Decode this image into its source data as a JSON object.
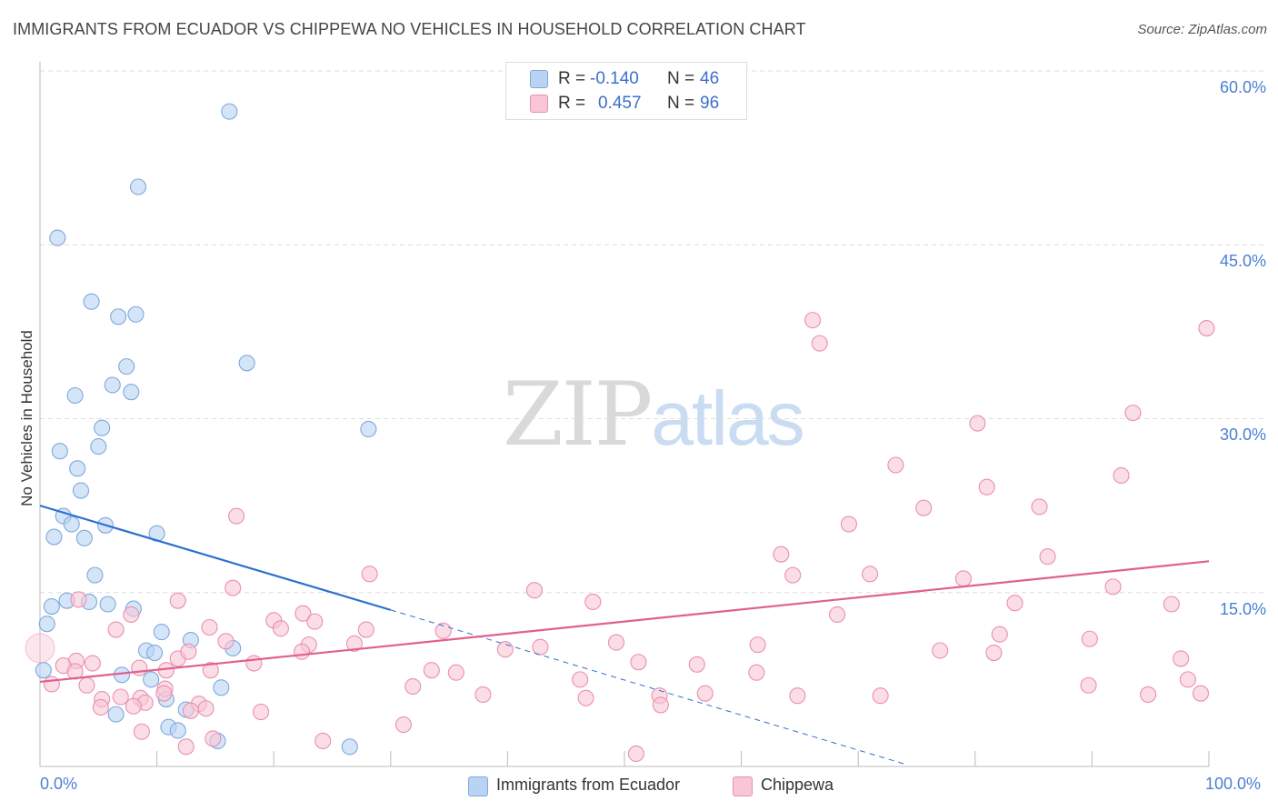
{
  "title": "IMMIGRANTS FROM ECUADOR VS CHIPPEWA NO VEHICLES IN HOUSEHOLD CORRELATION CHART",
  "source": "Source: ZipAtlas.com",
  "watermark": {
    "zip": "ZIP",
    "atlas": "atlas"
  },
  "legend_stats": [
    {
      "r_label": "R =",
      "r_value": "-0.140",
      "n_label": "N =",
      "n_value": "46",
      "color": "#a9c8ef"
    },
    {
      "r_label": "R =",
      "r_value": "0.457",
      "n_label": "N =",
      "n_value": "96",
      "color": "#f7b6cb"
    }
  ],
  "colors": {
    "ecuador_fill": "#b9d3f3",
    "ecuador_stroke": "#7fa8dc",
    "ecuador_line": "#2d6fd0",
    "chippewa_fill": "#f8c6d6",
    "chippewa_stroke": "#ea8fb0",
    "chippewa_line": "#e0608d",
    "axis_text": "#4a7fd4",
    "grid": "#dddddd"
  },
  "chart_data": {
    "type": "scatter",
    "title": "IMMIGRANTS FROM ECUADOR VS CHIPPEWA NO VEHICLES IN HOUSEHOLD CORRELATION CHART",
    "xlabel": "",
    "ylabel": "No Vehicles in Household",
    "xlim": [
      0,
      100
    ],
    "ylim": [
      0,
      60
    ],
    "x_tick_labels": [
      "0.0%",
      "100.0%"
    ],
    "y_ticks": [
      15,
      30,
      45,
      60
    ],
    "y_tick_labels": [
      "15.0%",
      "30.0%",
      "45.0%",
      "60.0%"
    ],
    "grid": true,
    "legend_position": "bottom-center",
    "series": [
      {
        "name": "Immigrants from Ecuador",
        "r": -0.14,
        "n": 46,
        "trend": {
          "x0": 0,
          "y0": 22.5,
          "x1": 30,
          "y1": 13.5,
          "dashed_to_x": 74,
          "dashed_to_y": 0.2
        },
        "points": [
          [
            16.2,
            56.5
          ],
          [
            8.4,
            50.0
          ],
          [
            1.5,
            45.6
          ],
          [
            4.4,
            40.1
          ],
          [
            6.7,
            38.8
          ],
          [
            8.2,
            39.0
          ],
          [
            7.4,
            34.5
          ],
          [
            17.7,
            34.8
          ],
          [
            3.0,
            32.0
          ],
          [
            6.2,
            32.9
          ],
          [
            7.8,
            32.3
          ],
          [
            28.1,
            29.1
          ],
          [
            5.3,
            29.2
          ],
          [
            1.7,
            27.2
          ],
          [
            5.0,
            27.6
          ],
          [
            3.2,
            25.7
          ],
          [
            3.5,
            23.8
          ],
          [
            2.0,
            21.6
          ],
          [
            2.7,
            20.9
          ],
          [
            5.6,
            20.8
          ],
          [
            1.2,
            19.8
          ],
          [
            3.8,
            19.7
          ],
          [
            10.0,
            20.1
          ],
          [
            4.7,
            16.5
          ],
          [
            1.0,
            13.8
          ],
          [
            2.3,
            14.3
          ],
          [
            4.2,
            14.2
          ],
          [
            5.8,
            14.0
          ],
          [
            8.0,
            13.6
          ],
          [
            0.6,
            12.3
          ],
          [
            10.4,
            11.6
          ],
          [
            12.9,
            10.9
          ],
          [
            9.1,
            10.0
          ],
          [
            9.8,
            9.8
          ],
          [
            16.5,
            10.2
          ],
          [
            0.3,
            8.3
          ],
          [
            7.0,
            7.9
          ],
          [
            9.5,
            7.5
          ],
          [
            15.5,
            6.8
          ],
          [
            10.8,
            5.8
          ],
          [
            12.5,
            4.9
          ],
          [
            6.5,
            4.5
          ],
          [
            11.0,
            3.4
          ],
          [
            11.8,
            3.1
          ],
          [
            15.2,
            2.2
          ],
          [
            26.5,
            1.7
          ]
        ]
      },
      {
        "name": "Chippewa",
        "r": 0.457,
        "n": 96,
        "trend": {
          "x0": 0,
          "y0": 7.3,
          "x1": 100,
          "y1": 17.7
        },
        "points": [
          [
            66.1,
            38.5
          ],
          [
            66.7,
            36.5
          ],
          [
            99.8,
            37.8
          ],
          [
            80.2,
            29.6
          ],
          [
            93.5,
            30.5
          ],
          [
            73.2,
            26.0
          ],
          [
            92.5,
            25.1
          ],
          [
            81.0,
            24.1
          ],
          [
            75.6,
            22.3
          ],
          [
            85.5,
            22.4
          ],
          [
            16.8,
            21.6
          ],
          [
            69.2,
            20.9
          ],
          [
            63.4,
            18.3
          ],
          [
            86.2,
            18.1
          ],
          [
            64.4,
            16.5
          ],
          [
            71.0,
            16.6
          ],
          [
            28.2,
            16.6
          ],
          [
            79.0,
            16.2
          ],
          [
            91.8,
            15.5
          ],
          [
            16.5,
            15.4
          ],
          [
            42.3,
            15.2
          ],
          [
            47.3,
            14.2
          ],
          [
            83.4,
            14.1
          ],
          [
            96.8,
            14.0
          ],
          [
            11.8,
            14.3
          ],
          [
            3.3,
            14.4
          ],
          [
            7.8,
            13.1
          ],
          [
            22.5,
            13.2
          ],
          [
            23.5,
            12.5
          ],
          [
            20.0,
            12.6
          ],
          [
            20.6,
            11.9
          ],
          [
            27.9,
            11.8
          ],
          [
            34.5,
            11.7
          ],
          [
            68.2,
            13.1
          ],
          [
            82.1,
            11.4
          ],
          [
            6.5,
            11.8
          ],
          [
            14.5,
            12.0
          ],
          [
            15.9,
            10.8
          ],
          [
            23.0,
            10.5
          ],
          [
            26.9,
            10.6
          ],
          [
            39.8,
            10.1
          ],
          [
            42.8,
            10.3
          ],
          [
            49.3,
            10.7
          ],
          [
            61.4,
            10.5
          ],
          [
            77.0,
            10.0
          ],
          [
            89.8,
            11.0
          ],
          [
            81.6,
            9.8
          ],
          [
            11.8,
            9.3
          ],
          [
            12.7,
            9.9
          ],
          [
            22.4,
            9.9
          ],
          [
            3.1,
            9.1
          ],
          [
            4.5,
            8.9
          ],
          [
            18.3,
            8.9
          ],
          [
            51.2,
            9.0
          ],
          [
            56.2,
            8.8
          ],
          [
            61.3,
            8.1
          ],
          [
            97.6,
            9.3
          ],
          [
            2.0,
            8.7
          ],
          [
            3.0,
            8.2
          ],
          [
            8.5,
            8.5
          ],
          [
            10.8,
            8.3
          ],
          [
            14.6,
            8.3
          ],
          [
            33.5,
            8.3
          ],
          [
            35.6,
            8.1
          ],
          [
            46.2,
            7.5
          ],
          [
            89.7,
            7.0
          ],
          [
            98.2,
            7.5
          ],
          [
            1.0,
            7.1
          ],
          [
            4.0,
            7.0
          ],
          [
            10.7,
            6.7
          ],
          [
            31.9,
            6.9
          ],
          [
            53.0,
            6.1
          ],
          [
            56.9,
            6.3
          ],
          [
            64.8,
            6.1
          ],
          [
            71.9,
            6.1
          ],
          [
            94.8,
            6.2
          ],
          [
            99.3,
            6.3
          ],
          [
            5.3,
            5.8
          ],
          [
            6.9,
            6.0
          ],
          [
            8.6,
            5.9
          ],
          [
            10.6,
            6.3
          ],
          [
            37.9,
            6.2
          ],
          [
            46.7,
            5.9
          ],
          [
            53.1,
            5.3
          ],
          [
            5.2,
            5.1
          ],
          [
            9.0,
            5.5
          ],
          [
            13.6,
            5.4
          ],
          [
            14.2,
            5.0
          ],
          [
            8.0,
            5.2
          ],
          [
            18.9,
            4.7
          ],
          [
            12.9,
            4.8
          ],
          [
            31.1,
            3.6
          ],
          [
            8.7,
            3.0
          ],
          [
            14.8,
            2.4
          ],
          [
            24.2,
            2.2
          ],
          [
            12.5,
            1.7
          ],
          [
            51.0,
            1.1
          ]
        ]
      }
    ]
  },
  "bottom_legend": [
    {
      "label": "Immigrants from Ecuador",
      "color": "#b9d3f3"
    },
    {
      "label": "Chippewa",
      "color": "#f8c6d6"
    }
  ]
}
